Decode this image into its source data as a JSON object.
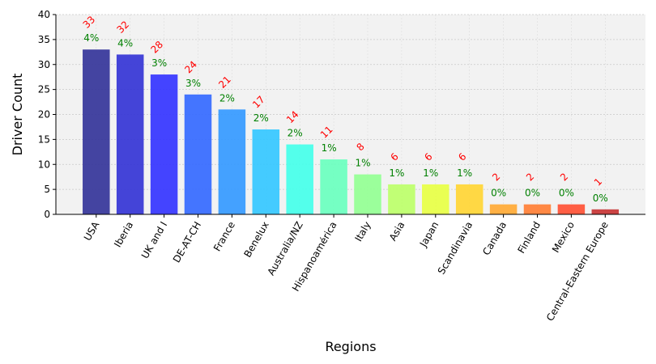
{
  "chart_data": {
    "type": "bar",
    "xlabel": "Regions",
    "ylabel": "Driver Count",
    "ylim": [
      0,
      40
    ],
    "yticks": [
      0,
      5,
      10,
      15,
      20,
      25,
      30,
      35,
      40
    ],
    "grid": true,
    "categories": [
      "USA",
      "Iberia",
      "UK and I",
      "DE-AT-CH",
      "France",
      "Benelux",
      "Australia/NZ",
      "Hispanoamérica",
      "Italy",
      "Asia",
      "Japan",
      "Scandinavia",
      "Canada",
      "Finland",
      "Mexico",
      "Central-Eastern Europe"
    ],
    "values": [
      33,
      32,
      28,
      24,
      21,
      17,
      14,
      11,
      8,
      6,
      6,
      6,
      2,
      2,
      2,
      1
    ],
    "count_labels": [
      "33",
      "32",
      "28",
      "24",
      "21",
      "17",
      "14",
      "11",
      "8",
      "6",
      "6",
      "6",
      "2",
      "2",
      "2",
      "1"
    ],
    "percent_labels": [
      "4%",
      "4%",
      "3%",
      "3%",
      "2%",
      "2%",
      "2%",
      "1%",
      "1%",
      "1%",
      "1%",
      "1%",
      "0%",
      "0%",
      "0%",
      "0%"
    ],
    "bar_colors": [
      "#3a3a9c",
      "#3a3ad6",
      "#3a3aff",
      "#3a6eff",
      "#3a9cff",
      "#3ac8ff",
      "#4affea",
      "#6effc0",
      "#96ff96",
      "#beff6e",
      "#e8ff4a",
      "#ffd63a",
      "#ffac3a",
      "#ff823a",
      "#ff553a",
      "#c83a3a"
    ],
    "count_label_color": "#ff0000",
    "percent_label_color": "#008000",
    "plot_background": "#f2f2f2"
  }
}
